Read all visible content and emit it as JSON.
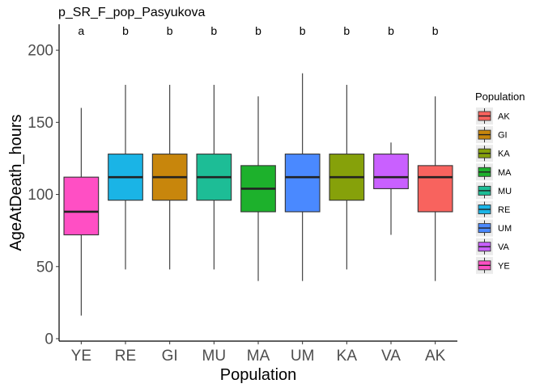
{
  "chart_data": {
    "type": "boxplot",
    "title": "p_SR_F_pop_Pasyukova",
    "xlabel": "Population",
    "ylabel": "AgeAtDeath_hours",
    "ylim": [
      0,
      218
    ],
    "yticks": [
      0,
      50,
      100,
      150,
      200
    ],
    "grid": false,
    "legend": {
      "title": "Population",
      "position": "right",
      "entries": [
        "AK",
        "GI",
        "KA",
        "MA",
        "MU",
        "RE",
        "UM",
        "VA",
        "YE"
      ]
    },
    "categories": [
      "YE",
      "RE",
      "GI",
      "MU",
      "MA",
      "UM",
      "KA",
      "VA",
      "AK"
    ],
    "boxes": [
      {
        "category": "YE",
        "min": 16,
        "q1": 72,
        "median": 88,
        "q3": 112,
        "max": 160,
        "color": "#FF4FC4",
        "letter": "a"
      },
      {
        "category": "RE",
        "min": 48,
        "q1": 96,
        "median": 112,
        "q3": 128,
        "max": 176,
        "color": "#1AB4E6",
        "letter": "b"
      },
      {
        "category": "GI",
        "min": 48,
        "q1": 96,
        "median": 112,
        "q3": 128,
        "max": 176,
        "color": "#C8860C",
        "letter": "b"
      },
      {
        "category": "MU",
        "min": 48,
        "q1": 96,
        "median": 112,
        "q3": 128,
        "max": 176,
        "color": "#1DBD96",
        "letter": "b"
      },
      {
        "category": "MA",
        "min": 40,
        "q1": 88,
        "median": 104,
        "q3": 120,
        "max": 168,
        "color": "#1DB12C",
        "letter": "b"
      },
      {
        "category": "UM",
        "min": 40,
        "q1": 88,
        "median": 112,
        "q3": 128,
        "max": 184,
        "color": "#4A89FF",
        "letter": "b"
      },
      {
        "category": "KA",
        "min": 48,
        "q1": 96,
        "median": 112,
        "q3": 128,
        "max": 176,
        "color": "#86A10A",
        "letter": "b"
      },
      {
        "category": "VA",
        "min": 72,
        "q1": 104,
        "median": 112,
        "q3": 128,
        "max": 136,
        "color": "#C960FF",
        "letter": "b"
      },
      {
        "category": "AK",
        "min": 40,
        "q1": 88,
        "median": 112,
        "q3": 120,
        "max": 168,
        "color": "#F8635E",
        "letter": "b"
      }
    ]
  }
}
